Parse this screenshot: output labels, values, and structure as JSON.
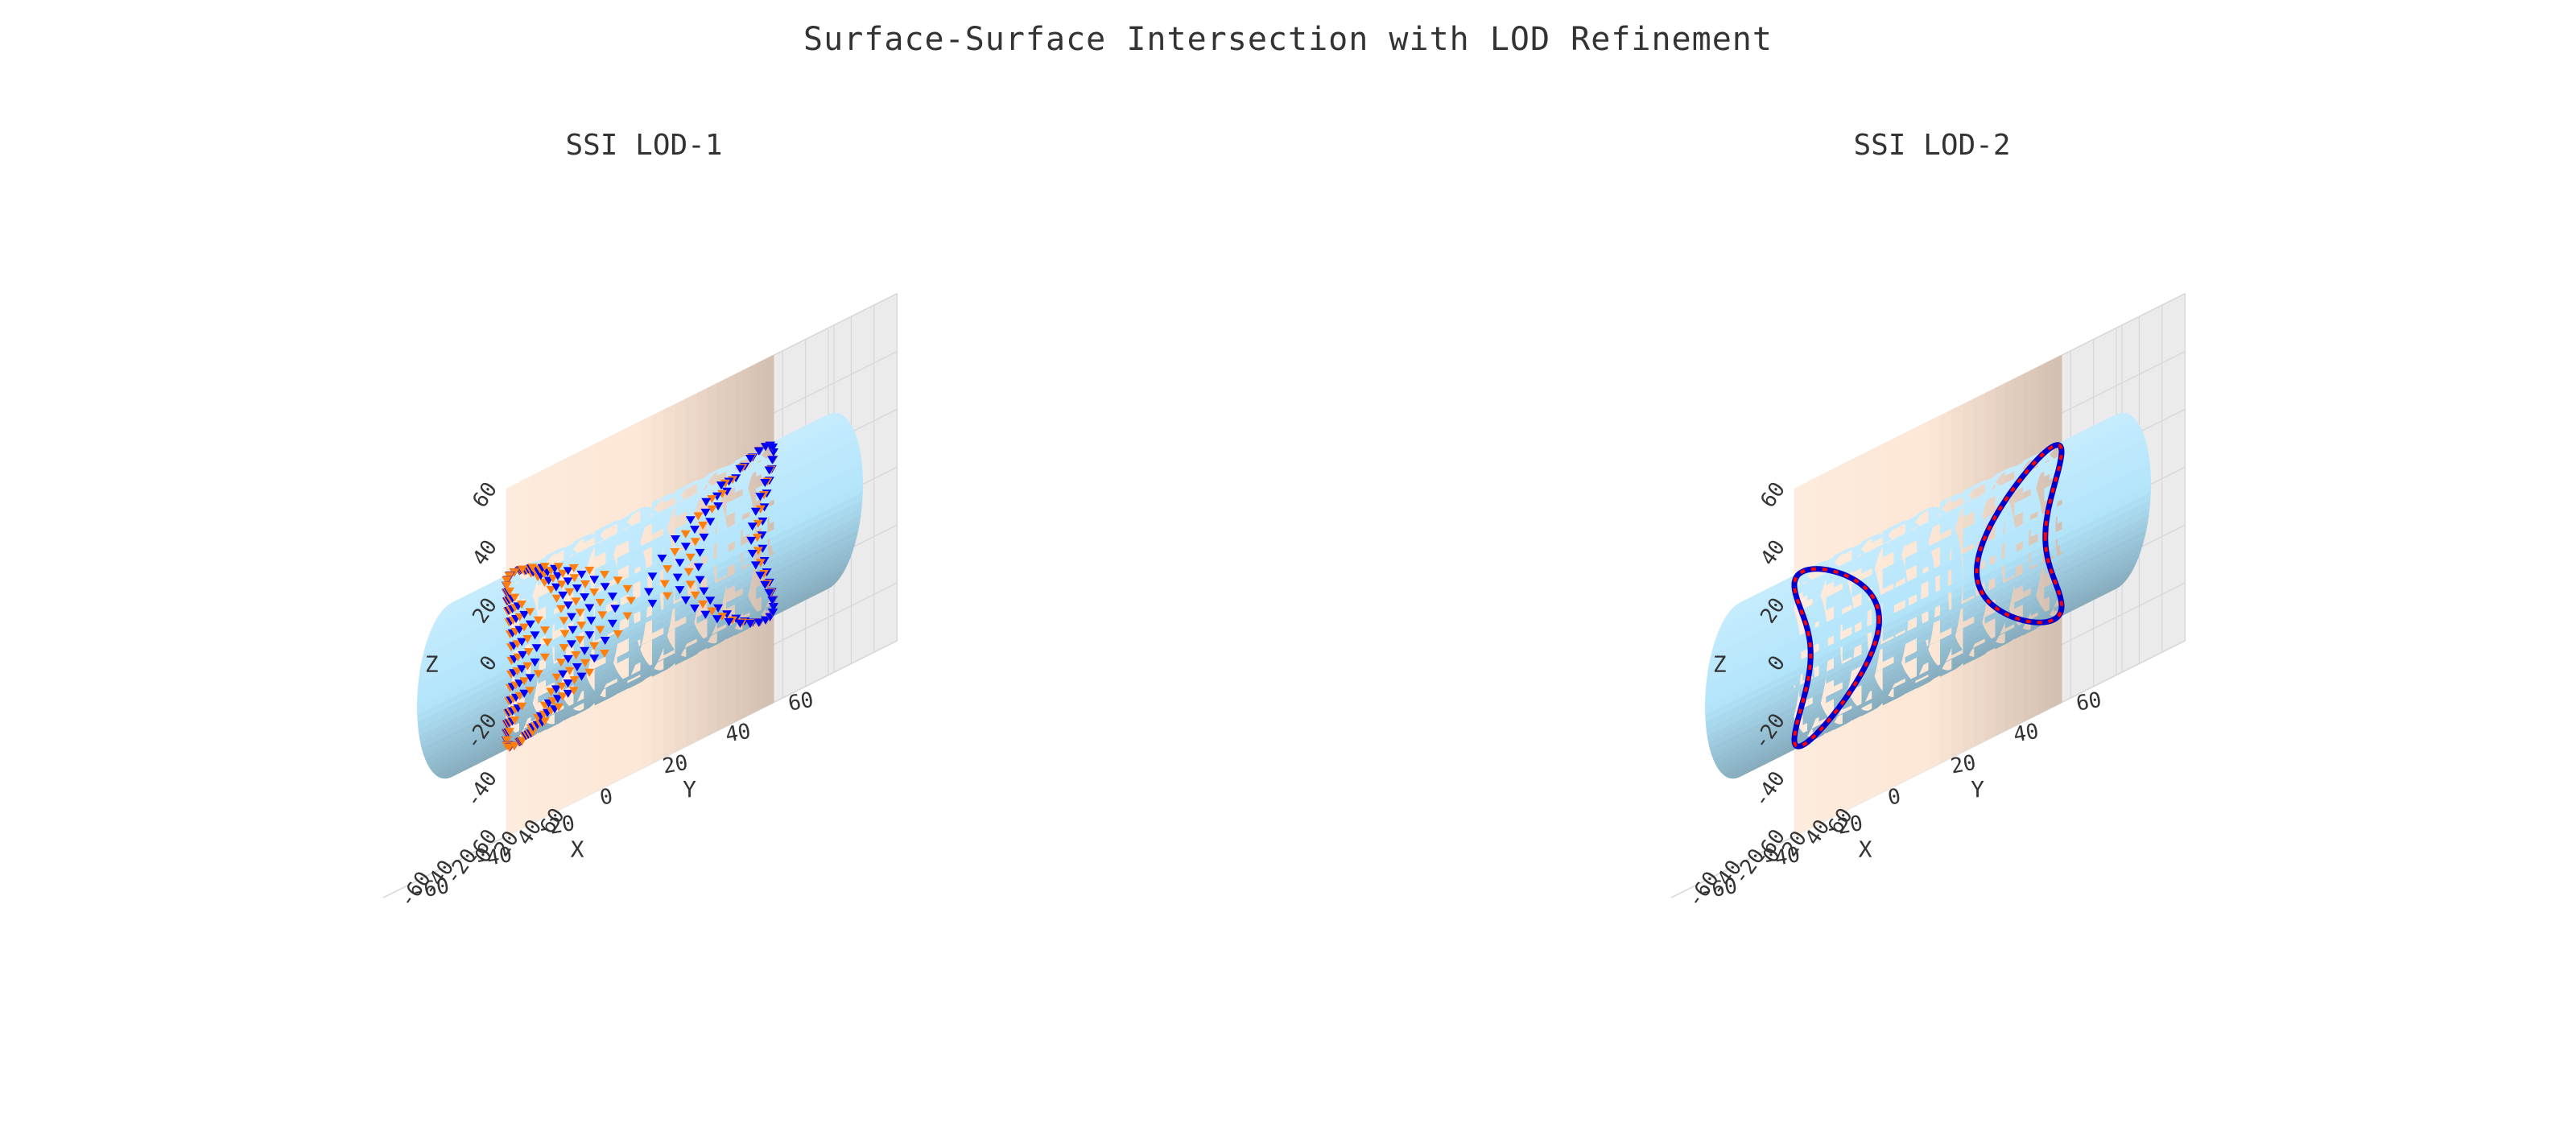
{
  "suptitle": "Surface-Surface Intersection with LOD Refinement",
  "colors": {
    "cylinder_vertical": "#fde7d6",
    "cylinder_horizontal": "#b3e5fc",
    "lod1_points_a": "#ff7f0e",
    "lod1_points_b": "#0000ff",
    "lod2_curve_a": "#ff0000",
    "lod2_curve_b": "#0000cc",
    "pane": "#ececec",
    "grid": "#ffffff"
  },
  "chart_data": [
    {
      "type": "scatter",
      "subtype": "3d",
      "title": "SSI LOD-1",
      "xlabel": "X",
      "ylabel": "Y",
      "zlabel": "Z",
      "xlim": [
        -60,
        60
      ],
      "ylim": [
        -60,
        60
      ],
      "zlim": [
        -60,
        60
      ],
      "xticks": [
        -60,
        -40,
        -20,
        0,
        20,
        40,
        60
      ],
      "yticks": [
        -60,
        -40,
        -20,
        0,
        20,
        40,
        60
      ],
      "zticks": [
        -60,
        -40,
        -20,
        0,
        20,
        40,
        60
      ],
      "surfaces": [
        {
          "kind": "cylinder",
          "axis": "z",
          "radius": 40,
          "extent": [
            -60,
            60
          ],
          "color": "#fde7d6"
        },
        {
          "kind": "cylinder",
          "axis": "y",
          "radius": 30,
          "extent": [
            -60,
            60
          ],
          "color": "#b3e5fc"
        }
      ],
      "series": [
        {
          "marker": "cone",
          "color": "#ff7f0e"
        },
        {
          "marker": "cone",
          "color": "#0000ff"
        }
      ],
      "grid": true
    },
    {
      "type": "line",
      "subtype": "3d",
      "title": "SSI LOD-2",
      "xlabel": "X",
      "ylabel": "Y",
      "zlabel": "Z",
      "xlim": [
        -60,
        60
      ],
      "ylim": [
        -60,
        60
      ],
      "zlim": [
        -60,
        60
      ],
      "xticks": [
        -60,
        -40,
        -20,
        0,
        20,
        40,
        60
      ],
      "yticks": [
        -60,
        -40,
        -20,
        0,
        20,
        40,
        60
      ],
      "zticks": [
        -60,
        -40,
        -20,
        0,
        20,
        40,
        60
      ],
      "surfaces": [
        {
          "kind": "cylinder",
          "axis": "z",
          "radius": 40,
          "extent": [
            -60,
            60
          ],
          "color": "#fde7d6"
        },
        {
          "kind": "cylinder",
          "axis": "y",
          "radius": 30,
          "extent": [
            -60,
            60
          ],
          "color": "#b3e5fc"
        }
      ],
      "series": [
        {
          "marker": "dotted-line",
          "color": "#ff0000"
        },
        {
          "marker": "line",
          "color": "#0000cc"
        }
      ],
      "grid": true
    }
  ]
}
